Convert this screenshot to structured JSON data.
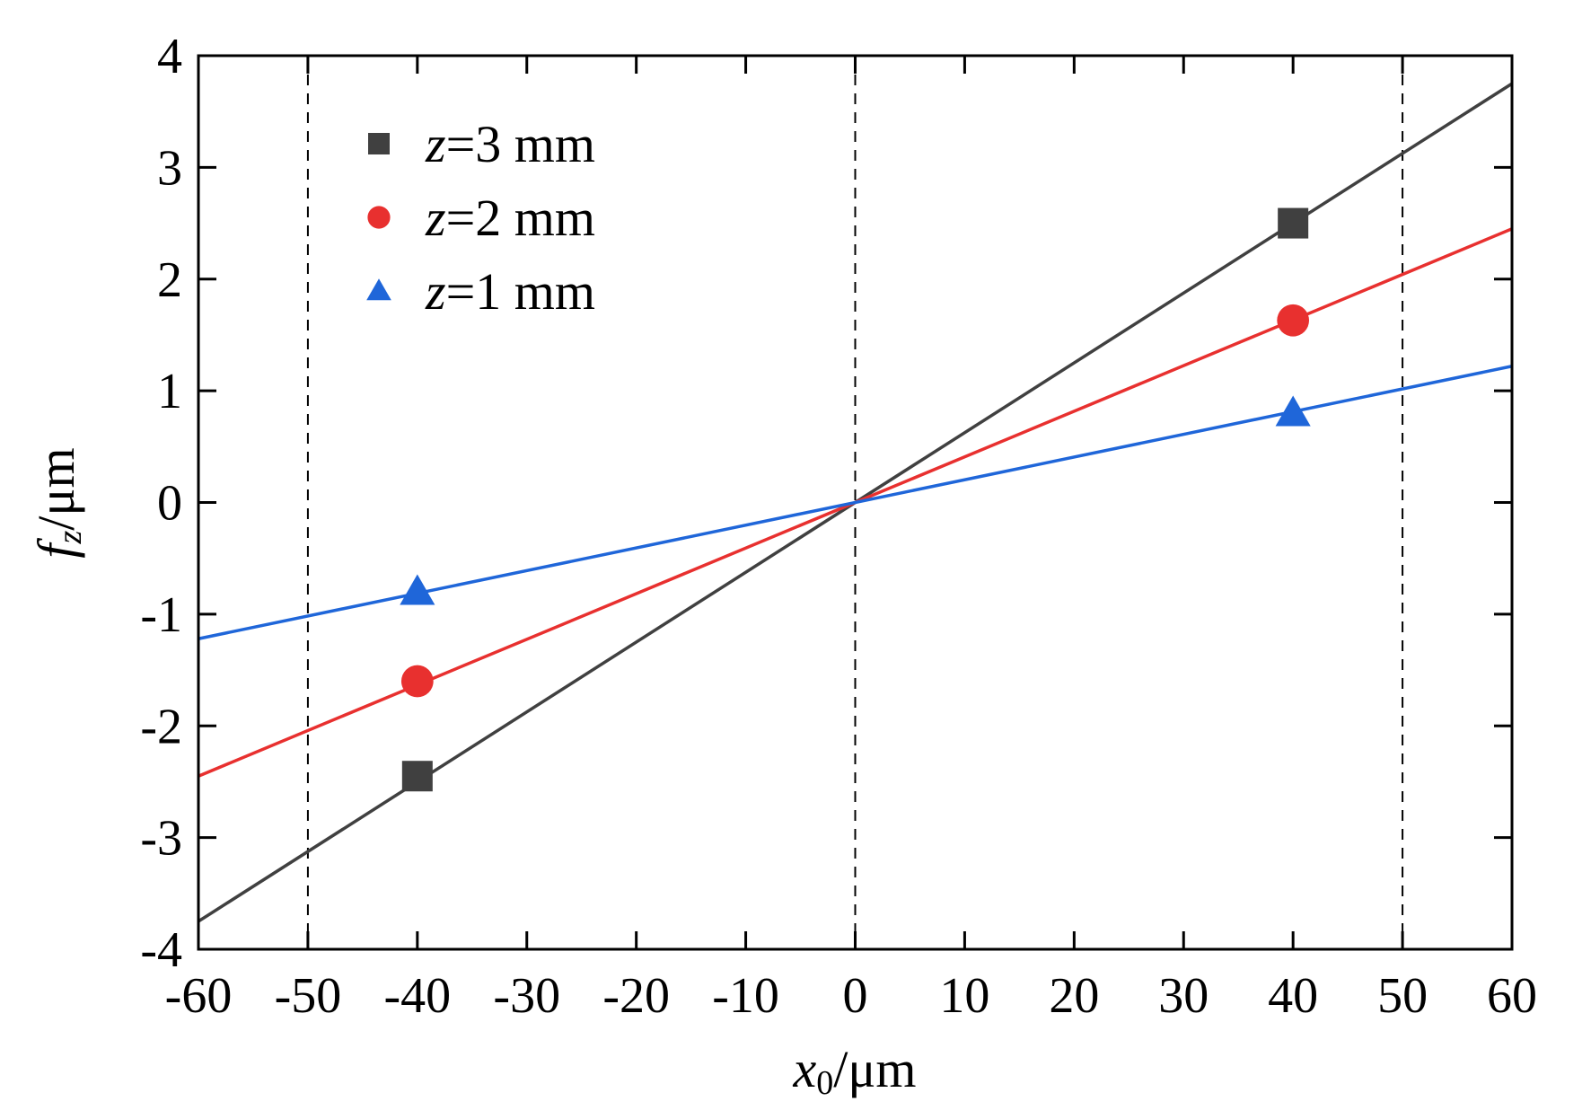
{
  "chart_data": {
    "type": "line",
    "title": "",
    "xlabel": "x0/μm",
    "xlabel_main": "x",
    "xlabel_sub": "0",
    "xlabel_unit": "/μm",
    "ylabel_main": "f",
    "ylabel_sub": "z",
    "ylabel_unit": "/μm",
    "xlim": [
      -60,
      60
    ],
    "ylim": [
      -4,
      4
    ],
    "xticks": [
      -60,
      -50,
      -40,
      -30,
      -20,
      -10,
      0,
      10,
      20,
      30,
      40,
      50,
      60
    ],
    "yticks": [
      -4,
      -3,
      -2,
      -1,
      0,
      1,
      2,
      3,
      4
    ],
    "reference_lines_x": [
      -50,
      0,
      50
    ],
    "legend_position": "top-left",
    "series": [
      {
        "name": "z=3 mm",
        "z": "z",
        "label_rest": "=3 mm",
        "color": "#404040",
        "marker": "square",
        "slope": 0.0625,
        "line": [
          [
            -60,
            -3.75
          ],
          [
            60,
            3.75
          ]
        ],
        "points": [
          [
            -40,
            -2.45
          ],
          [
            40,
            2.5
          ]
        ]
      },
      {
        "name": "z=2 mm",
        "z": "z",
        "label_rest": "=2 mm",
        "color": "#e8302f",
        "marker": "circle",
        "slope": 0.041,
        "line": [
          [
            -60,
            -2.45
          ],
          [
            60,
            2.45
          ]
        ],
        "points": [
          [
            -40,
            -1.6
          ],
          [
            40,
            1.63
          ]
        ]
      },
      {
        "name": "z=1 mm",
        "z": "z",
        "label_rest": "=1 mm",
        "color": "#1f66d9",
        "marker": "triangle",
        "slope": 0.0203,
        "line": [
          [
            -60,
            -1.22
          ],
          [
            60,
            1.22
          ]
        ],
        "points": [
          [
            -40,
            -0.8
          ],
          [
            40,
            0.8
          ]
        ]
      }
    ]
  }
}
